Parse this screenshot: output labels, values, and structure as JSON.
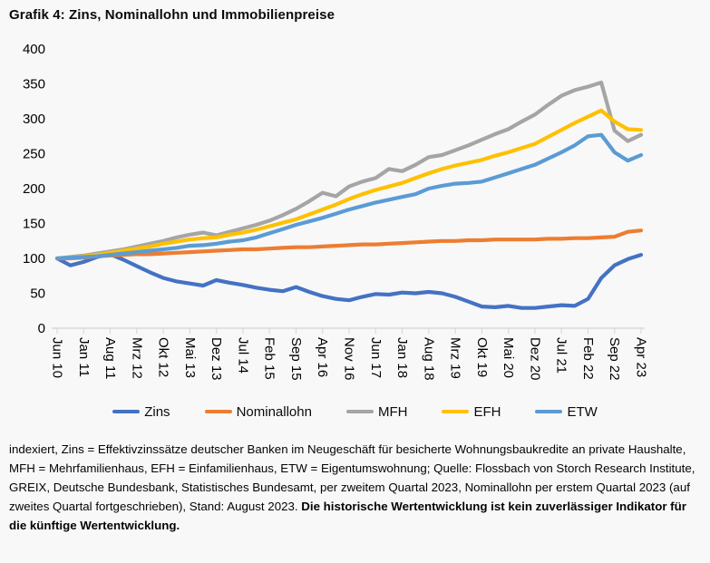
{
  "title": "Grafik 4: Zins, Nominallohn und Immobilienpreise",
  "colors": {
    "background": "#f8f8f8",
    "axis": "#d9d9d9",
    "text": "#000000"
  },
  "chart_data": {
    "type": "line",
    "title": "Grafik 4: Zins, Nominallohn und Immobilienpreise",
    "xlabel": "",
    "ylabel": "",
    "ylim": [
      0,
      400
    ],
    "y_ticks": [
      0,
      50,
      100,
      150,
      200,
      250,
      300,
      350,
      400
    ],
    "grid": false,
    "legend_position": "bottom",
    "x_tick_labels": [
      "Jun 10",
      "Jan 11",
      "Aug 11",
      "Mrz 12",
      "Okt 12",
      "Mai 13",
      "Dez 13",
      "Jul 14",
      "Feb 15",
      "Sep 15",
      "Apr 16",
      "Nov 16",
      "Jun 17",
      "Jan 18",
      "Aug 18",
      "Mrz 19",
      "Okt 19",
      "Mai 20",
      "Dez 20",
      "Jul 21",
      "Feb 22",
      "Sep 22",
      "Apr 23"
    ],
    "samples_per_label": 2,
    "series": [
      {
        "name": "Zins",
        "color": "#4472C4",
        "values": [
          100,
          90,
          95,
          102,
          106,
          98,
          89,
          80,
          72,
          67,
          64,
          61,
          69,
          65,
          62,
          58,
          55,
          53,
          59,
          52,
          46,
          42,
          40,
          45,
          49,
          48,
          51,
          50,
          52,
          50,
          45,
          38,
          31,
          30,
          32,
          29,
          29,
          31,
          33,
          32,
          42,
          72,
          90,
          99,
          105
        ]
      },
      {
        "name": "Nominallohn",
        "color": "#ED7D31",
        "values": [
          100,
          100,
          101,
          103,
          104,
          105,
          106,
          106,
          107,
          108,
          109,
          110,
          111,
          112,
          113,
          113,
          114,
          115,
          116,
          116,
          117,
          118,
          119,
          120,
          120,
          121,
          122,
          123,
          124,
          125,
          125,
          126,
          126,
          127,
          127,
          127,
          127,
          128,
          128,
          129,
          129,
          130,
          131,
          138,
          140
        ]
      },
      {
        "name": "MFH",
        "color": "#A5A5A5",
        "values": [
          100,
          102,
          104,
          107,
          110,
          113,
          117,
          121,
          125,
          130,
          134,
          137,
          133,
          138,
          143,
          148,
          154,
          162,
          171,
          182,
          194,
          189,
          203,
          210,
          215,
          228,
          225,
          234,
          245,
          248,
          255,
          262,
          270,
          278,
          285,
          296,
          306,
          320,
          333,
          341,
          346,
          352,
          283,
          268,
          277
        ]
      },
      {
        "name": "EFH",
        "color": "#FFC000",
        "values": [
          100,
          101,
          103,
          105,
          108,
          111,
          114,
          117,
          121,
          124,
          127,
          129,
          130,
          134,
          137,
          141,
          146,
          151,
          156,
          163,
          170,
          177,
          185,
          192,
          198,
          203,
          208,
          215,
          222,
          228,
          233,
          237,
          241,
          247,
          252,
          258,
          264,
          274,
          284,
          294,
          303,
          312,
          296,
          285,
          284
        ]
      },
      {
        "name": "ETW",
        "color": "#5B9BD5",
        "values": [
          100,
          101,
          102,
          103,
          105,
          107,
          109,
          111,
          113,
          115,
          118,
          119,
          121,
          124,
          126,
          130,
          136,
          142,
          148,
          153,
          158,
          164,
          170,
          175,
          180,
          184,
          188,
          192,
          200,
          204,
          207,
          208,
          210,
          216,
          222,
          228,
          234,
          243,
          252,
          262,
          275,
          277,
          252,
          240,
          248
        ]
      }
    ]
  },
  "legend": {
    "items": [
      {
        "label": "Zins",
        "color": "#4472C4"
      },
      {
        "label": "Nominallohn",
        "color": "#ED7D31"
      },
      {
        "label": "MFH",
        "color": "#A5A5A5"
      },
      {
        "label": "EFH",
        "color": "#FFC000"
      },
      {
        "label": "ETW",
        "color": "#5B9BD5"
      }
    ]
  },
  "footer": {
    "text": "indexiert, Zins = Effektivzinssätze deutscher Banken im Neugeschäft für besicherte Wohnungsbaukredite an private Haushalte, MFH = Mehrfamilienhaus, EFH = Einfamilienhaus, ETW = Eigentumswohnung; Quelle: Flossbach von Storch Research Institute, GREIX, Deutsche Bundesbank, Statistisches Bundesamt, per zweitem Quartal 2023, Nominallohn per erstem Quartal 2023 (auf zweites Quartal fortgeschrieben), Stand: August 2023. ",
    "bold_text": "Die historische Wertentwicklung ist kein zuverlässiger Indikator für die künftige Wertentwicklung."
  }
}
